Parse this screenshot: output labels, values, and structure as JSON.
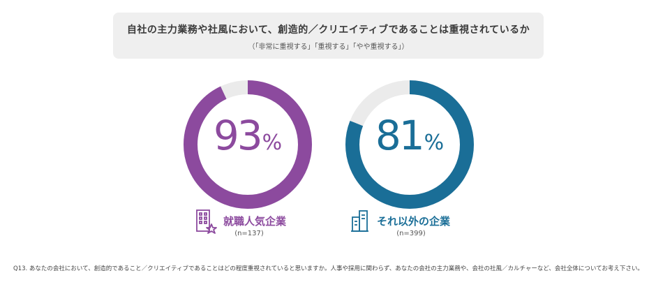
{
  "header": {
    "title": "自社の主力業務や社風において、創造的／クリエイティブであることは重視されているか",
    "subtitle": "（「非常に重視する」「重視する」「やや重視する」）"
  },
  "chart_data": {
    "type": "pie",
    "title": "自社の主力業務や社風において、創造的／クリエイティブであることは重視されているか",
    "subtitle": "（「非常に重視する」「重視する」「やや重視する」）",
    "unit": "%",
    "series": [
      {
        "name": "就職人気企業",
        "n_label": "(n=137)",
        "value": 93,
        "value_label": "93",
        "color": "#8c4a9e",
        "icon": "office-building-star-icon"
      },
      {
        "name": "それ以外の企業",
        "n_label": "(n=399)",
        "value": 81,
        "value_label": "81",
        "color": "#1a6e97",
        "icon": "office-buildings-icon"
      }
    ],
    "track_color": "#ebebeb"
  },
  "footnote": "Q13. あなたの会社において、創造的であること／クリエイティブであることはどの程度重視されていると思いますか。人事や採用に関わらず、あなたの会社の主力業務や、会社の社風／カルチャーなど、会社全体についてお考え下さい。"
}
